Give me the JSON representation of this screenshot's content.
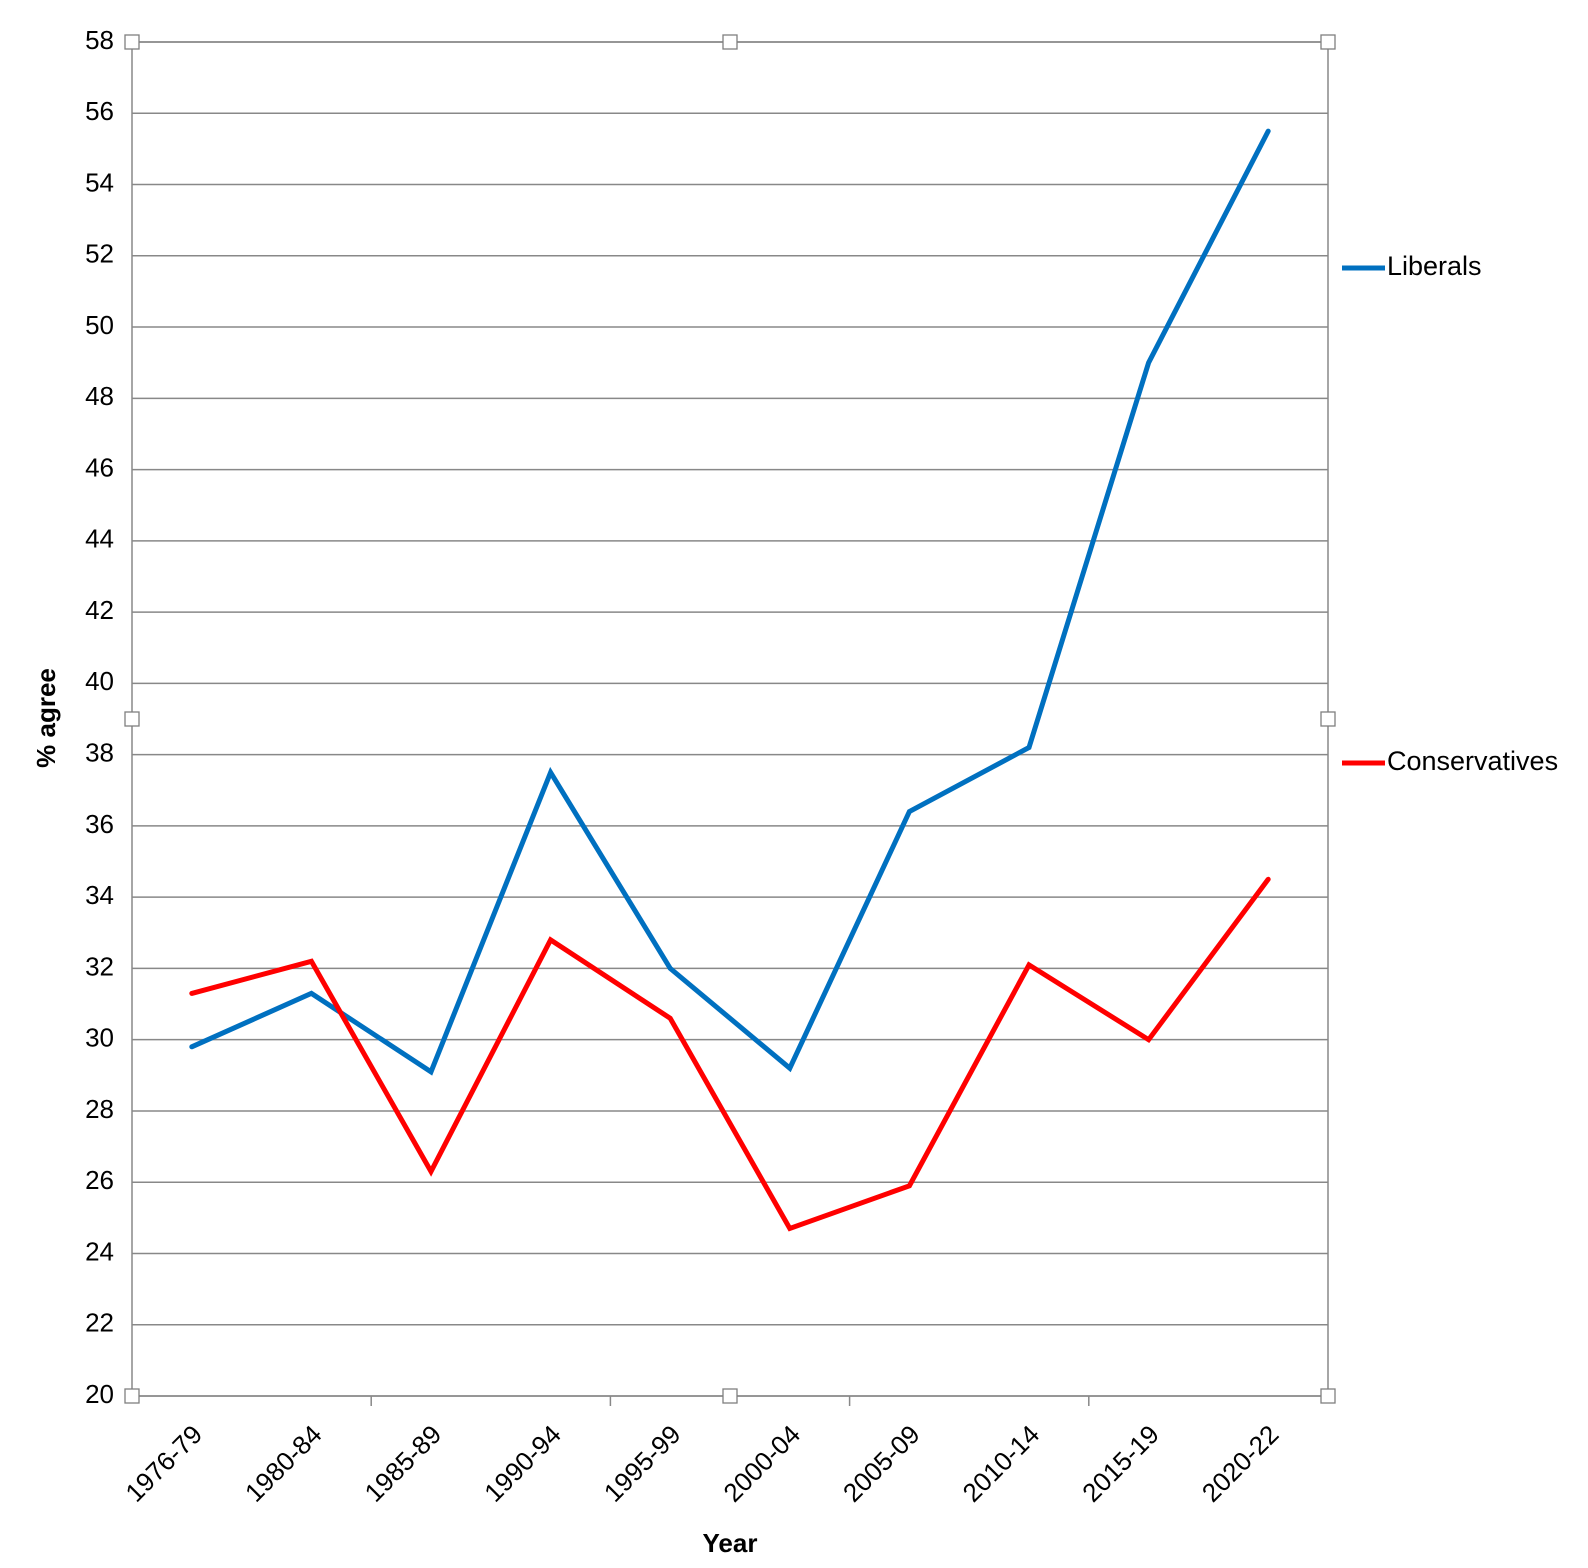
{
  "chart_data": {
    "type": "line",
    "title": "",
    "xlabel": "Year",
    "ylabel": "% agree",
    "ylim": [
      20,
      58
    ],
    "ytick_step": 2,
    "grid": true,
    "legend_position": "right",
    "categories": [
      "1976-79",
      "1980-84",
      "1985-89",
      "1990-94",
      "1995-99",
      "2000-04",
      "2005-09",
      "2010-14",
      "2015-19",
      "2020-22"
    ],
    "series": [
      {
        "name": "Liberals",
        "color": "#0070c0",
        "values": [
          29.8,
          31.3,
          29.1,
          37.5,
          32.0,
          29.2,
          36.4,
          38.2,
          49.0,
          55.5
        ]
      },
      {
        "name": "Conservatives",
        "color": "#ff0000",
        "values": [
          31.3,
          32.2,
          26.3,
          32.8,
          30.6,
          24.7,
          25.9,
          32.1,
          30.0,
          34.5
        ]
      }
    ]
  }
}
